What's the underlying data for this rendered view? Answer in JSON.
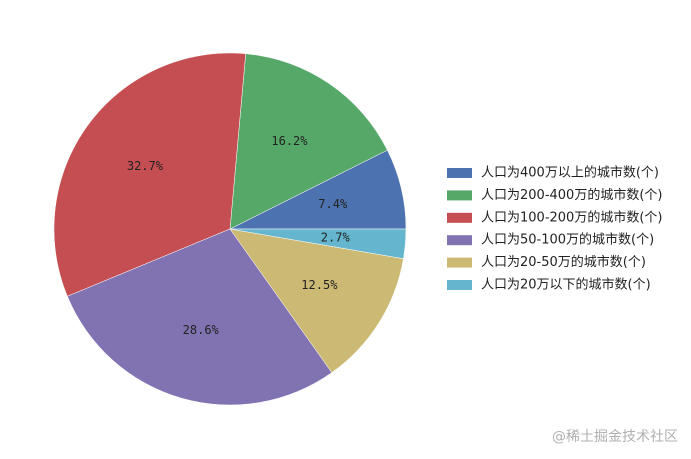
{
  "chart_data": {
    "type": "pie",
    "categories": [
      "人口为400万以上的城市数(个)",
      "人口为200-400万的城市数(个)",
      "人口为100-200万的城市数(个)",
      "人口为50-100万的城市数(个)",
      "人口为20-50万的城市数(个)",
      "人口为20万以下的城市数(个)"
    ],
    "values": [
      7.4,
      16.2,
      32.7,
      28.6,
      12.5,
      2.7
    ],
    "value_labels": [
      "7.4%",
      "16.2%",
      "32.7%",
      "28.6%",
      "12.5%",
      "2.7%"
    ],
    "colors": [
      "#4c72b0",
      "#55a868",
      "#c44e52",
      "#8172b2",
      "#ccb974",
      "#64b5cd"
    ],
    "legend": "right"
  },
  "watermark": "@稀土掘金技术社区"
}
